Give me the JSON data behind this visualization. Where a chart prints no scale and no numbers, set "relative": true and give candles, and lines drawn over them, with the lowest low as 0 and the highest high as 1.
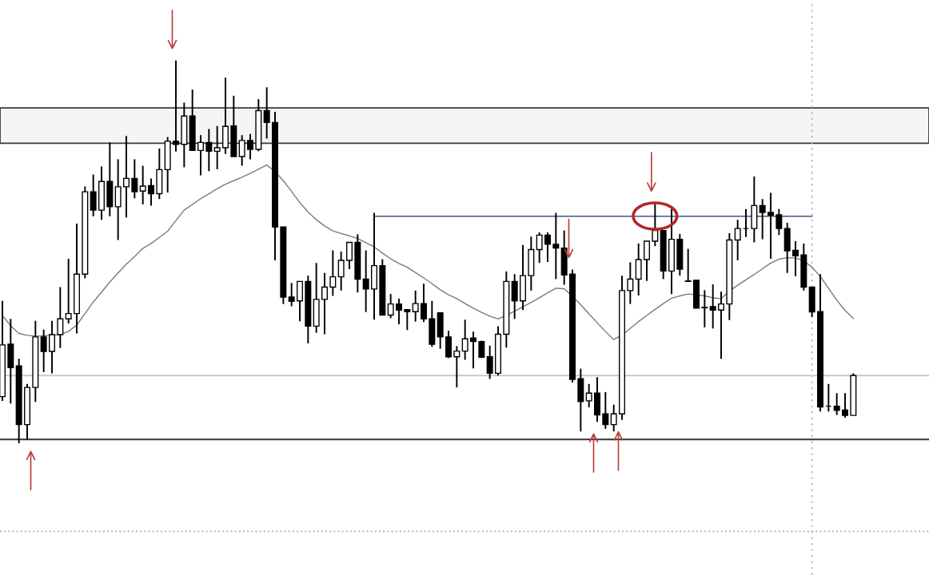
{
  "chart_data": {
    "type": "candlestick",
    "relative": true,
    "color": "#000000",
    "categories": [
      null,
      null,
      null,
      null,
      null,
      null,
      null,
      null,
      null,
      null,
      null,
      null,
      null,
      null,
      null,
      null,
      null,
      null,
      null,
      null,
      null,
      null,
      null,
      null,
      null,
      null,
      null,
      null,
      null,
      null,
      null,
      null,
      null,
      null,
      null,
      null,
      null,
      null,
      null,
      null,
      null,
      null,
      null,
      null,
      null,
      null,
      null,
      null,
      null,
      null,
      null,
      null,
      null,
      null,
      null,
      null,
      null,
      null,
      null,
      null,
      null,
      null,
      null,
      null,
      null,
      null,
      null,
      null,
      null,
      null,
      null,
      null,
      null,
      null,
      null,
      null,
      null,
      null,
      null,
      null,
      null,
      null,
      null,
      null,
      null,
      null,
      null,
      null,
      null,
      null,
      null,
      null,
      null,
      null,
      null,
      null,
      null,
      null,
      null,
      null,
      null,
      null,
      null,
      null
    ],
    "ohlc": [
      [
        0.122,
        0.372,
        0.111,
        0.257
      ],
      [
        0.259,
        0.325,
        0.104,
        0.198
      ],
      [
        0.202,
        0.221,
        0,
        0.049
      ],
      [
        0.049,
        0.155,
        0.01,
        0.146
      ],
      [
        0.146,
        0.32,
        0.108,
        0.278
      ],
      [
        0.278,
        0.297,
        0.186,
        0.24
      ],
      [
        0.24,
        0.32,
        0.183,
        0.284
      ],
      [
        0.284,
        0.408,
        0.249,
        0.325
      ],
      [
        0.325,
        0.482,
        0.313,
        0.339
      ],
      [
        0.339,
        0.574,
        0.287,
        0.442
      ],
      [
        0.442,
        0.671,
        0.431,
        0.657
      ],
      [
        0.657,
        0.702,
        0.593,
        0.609
      ],
      [
        0.609,
        0.723,
        0.584,
        0.684
      ],
      [
        0.684,
        0.786,
        0.593,
        0.618
      ],
      [
        0.618,
        0.742,
        0.531,
        0.67
      ],
      [
        0.67,
        0.803,
        0.59,
        0.692
      ],
      [
        0.692,
        0.742,
        0.64,
        0.657
      ],
      [
        0.659,
        0.725,
        0.624,
        0.672
      ],
      [
        0.673,
        0.692,
        0.621,
        0.652
      ],
      [
        0.652,
        0.77,
        0.638,
        0.715
      ],
      [
        0.715,
        0.8,
        0.655,
        0.789
      ],
      [
        0.789,
        1,
        0.762,
        0.781
      ],
      [
        0.781,
        0.89,
        0.721,
        0.855
      ],
      [
        0.855,
        0.924,
        0.765,
        0.765
      ],
      [
        0.765,
        0.805,
        0.7,
        0.786
      ],
      [
        0.786,
        0.821,
        0.711,
        0.763
      ],
      [
        0.763,
        0.829,
        0.716,
        0.772
      ],
      [
        0.772,
        0.955,
        0.756,
        0.828
      ],
      [
        0.829,
        0.908,
        0.749,
        0.749
      ],
      [
        0.749,
        0.805,
        0.725,
        0.791
      ],
      [
        0.791,
        0.808,
        0.742,
        0.768
      ],
      [
        0.768,
        0.899,
        0.763,
        0.869
      ],
      [
        0.869,
        0.93,
        0.796,
        0.838
      ],
      [
        0.838,
        0.866,
        0.478,
        0.565
      ],
      [
        0.565,
        0.565,
        0.364,
        0.382
      ],
      [
        0.382,
        0.419,
        0.358,
        0.371
      ],
      [
        0.372,
        0.423,
        0.319,
        0.423
      ],
      [
        0.423,
        0.438,
        0.261,
        0.306
      ],
      [
        0.306,
        0.471,
        0.289,
        0.376
      ],
      [
        0.376,
        0.445,
        0.285,
        0.408
      ],
      [
        0.408,
        0.504,
        0.385,
        0.435
      ],
      [
        0.435,
        0.501,
        0.399,
        0.478
      ],
      [
        0.478,
        0.525,
        0.455,
        0.525
      ],
      [
        0.525,
        0.546,
        0.394,
        0.429
      ],
      [
        0.429,
        0.504,
        0.343,
        0.403
      ],
      [
        0.403,
        0.602,
        0.323,
        0.464
      ],
      [
        0.464,
        0.481,
        0.335,
        0.335
      ],
      [
        0.335,
        0.39,
        0.327,
        0.364
      ],
      [
        0.364,
        0.378,
        0.311,
        0.348
      ],
      [
        0.349,
        0.349,
        0.296,
        0.344
      ],
      [
        0.344,
        0.399,
        0.318,
        0.365
      ],
      [
        0.365,
        0.417,
        0.317,
        0.325
      ],
      [
        0.325,
        0.372,
        0.252,
        0.259
      ],
      [
        0.341,
        0.341,
        0.247,
        0.278
      ],
      [
        0.278,
        0.294,
        0.223,
        0.226
      ],
      [
        0.226,
        0.254,
        0.146,
        0.241
      ],
      [
        0.241,
        0.323,
        0.218,
        0.273
      ],
      [
        0.275,
        0.292,
        0.196,
        0.266
      ],
      [
        0.266,
        0.268,
        0.223,
        0.225
      ],
      [
        0.226,
        0.255,
        0.168,
        0.183
      ],
      [
        0.183,
        0.306,
        0.177,
        0.285
      ],
      [
        0.285,
        0.449,
        0.25,
        0.423
      ],
      [
        0.423,
        0.442,
        0.325,
        0.372
      ],
      [
        0.372,
        0.518,
        0.348,
        0.438
      ],
      [
        0.438,
        0.54,
        0.399,
        0.506
      ],
      [
        0.506,
        0.551,
        0.471,
        0.544
      ],
      [
        0.544,
        0.551,
        0.474,
        0.52
      ],
      [
        0.52,
        0.602,
        0.429,
        0.51
      ],
      [
        0.51,
        0.556,
        0.414,
        0.44
      ],
      [
        0.442,
        0.454,
        0.159,
        0.167
      ],
      [
        0.169,
        0.195,
        0.031,
        0.109
      ],
      [
        0.111,
        0.155,
        0.094,
        0.131
      ],
      [
        0.131,
        0.173,
        0.056,
        0.074
      ],
      [
        0.077,
        0.134,
        0.038,
        0.049
      ],
      [
        0.049,
        0.101,
        0.031,
        0.077
      ],
      [
        0.077,
        0.438,
        0.061,
        0.399
      ],
      [
        0.399,
        0.473,
        0.364,
        0.429
      ],
      [
        0.429,
        0.522,
        0.386,
        0.48
      ],
      [
        0.48,
        0.528,
        0.424,
        0.528
      ],
      [
        0.528,
        0.628,
        0.515,
        0.556
      ],
      [
        0.556,
        0.556,
        0.429,
        0.45
      ],
      [
        0.45,
        0.612,
        0.39,
        0.533
      ],
      [
        0.533,
        0.547,
        0.438,
        0.455
      ],
      [
        0.424,
        0.508,
        0.422,
        0.423
      ],
      [
        0.426,
        0.426,
        0.353,
        0.353
      ],
      [
        0.355,
        0.4,
        0.303,
        0.354
      ],
      [
        0.357,
        0.415,
        0.3,
        0.348
      ],
      [
        0.348,
        0.396,
        0.221,
        0.364
      ],
      [
        0.364,
        0.549,
        0.322,
        0.531
      ],
      [
        0.531,
        0.584,
        0.478,
        0.561
      ],
      [
        0.561,
        0.612,
        0.539,
        0.561
      ],
      [
        0.561,
        0.697,
        0.525,
        0.621
      ],
      [
        0.621,
        0.638,
        0.533,
        0.603
      ],
      [
        0.603,
        0.654,
        0.482,
        0.596
      ],
      [
        0.597,
        0.612,
        0.544,
        0.561
      ],
      [
        0.561,
        0.576,
        0.445,
        0.503
      ],
      [
        0.504,
        0.528,
        0.436,
        0.49
      ],
      [
        0.492,
        0.522,
        0.399,
        0.408
      ],
      [
        0.408,
        0.408,
        0.33,
        0.343
      ],
      [
        0.344,
        0.442,
        0.083,
        0.095
      ],
      [
        0.097,
        0.155,
        0.083,
        0.097
      ],
      [
        0.097,
        0.131,
        0.074,
        0.086
      ],
      [
        0.087,
        0.131,
        0.067,
        0.073
      ],
      [
        0.073,
        0.183,
        0.073,
        0.177
      ]
    ],
    "series": [
      {
        "type": "line",
        "color": "#7a7a7a",
        "values": [
          0.334,
          0.307,
          0.287,
          0.282,
          0.28,
          0.281,
          0.282,
          0.284,
          0.292,
          0.309,
          0.339,
          0.369,
          0.395,
          0.421,
          0.445,
          0.468,
          0.488,
          0.509,
          0.522,
          0.538,
          0.554,
          0.582,
          0.609,
          0.624,
          0.639,
          0.652,
          0.665,
          0.677,
          0.686,
          0.695,
          0.705,
          0.716,
          0.727,
          0.71,
          0.686,
          0.658,
          0.629,
          0.604,
          0.584,
          0.568,
          0.555,
          0.548,
          0.542,
          0.535,
          0.524,
          0.513,
          0.497,
          0.482,
          0.47,
          0.46,
          0.446,
          0.432,
          0.417,
          0.401,
          0.388,
          0.378,
          0.365,
          0.353,
          0.342,
          0.332,
          0.325,
          0.334,
          0.345,
          0.356,
          0.368,
          0.38,
          0.393,
          0.405,
          0.404,
          0.384,
          0.362,
          0.338,
          0.315,
          0.292,
          0.271,
          0.283,
          0.3,
          0.318,
          0.334,
          0.35,
          0.365,
          0.379,
          0.385,
          0.39,
          0.388,
          0.385,
          0.38,
          0.378,
          0.398,
          0.413,
          0.427,
          0.441,
          0.456,
          0.471,
          0.481,
          0.485,
          0.484,
          0.477,
          0.46,
          0.436,
          0.405,
          0.374,
          0.347,
          0.326
        ]
      },
      {
        "type": "line",
        "color": "#1c3560",
        "values": [
          null,
          null,
          null,
          null,
          null,
          null,
          null,
          null,
          null,
          null,
          null,
          null,
          null,
          null,
          null,
          null,
          null,
          null,
          null,
          null,
          null,
          null,
          null,
          null,
          null,
          null,
          null,
          null,
          null,
          null,
          null,
          null,
          null,
          null,
          null,
          null,
          null,
          null,
          null,
          null,
          null,
          null,
          null,
          null,
          null,
          0.593,
          0.593,
          0.593,
          0.593,
          0.593,
          0.593,
          0.593,
          0.593,
          0.593,
          0.593,
          0.593,
          0.593,
          0.593,
          0.593,
          0.593,
          0.593,
          0.593,
          0.593,
          0.593,
          0.593,
          0.593,
          0.593,
          0.593,
          0.593,
          0.593,
          0.593,
          0.593,
          0.593,
          0.593,
          0.593,
          0.593,
          0.593,
          0.593,
          0.593,
          0.593,
          0.593,
          0.593,
          0.593,
          0.593,
          0.593,
          0.593,
          0.593,
          0.593,
          0.593,
          0.593,
          0.593,
          0.593,
          0.593,
          0.593,
          0.593,
          0.593,
          0.593,
          0.593,
          0.593,
          null,
          null,
          null,
          null,
          null
        ]
      }
    ],
    "ref_lines": [
      {
        "axis": "y",
        "value": 0.01,
        "color": "#333333"
      },
      {
        "axis": "y",
        "value": 0.177,
        "color": "#c8c8c8"
      },
      {
        "axis": "y",
        "value": -0.23,
        "color": "#a8a8a8",
        "line_style": "dotted"
      }
    ],
    "bands": [
      {
        "axis": "y",
        "from": 0.784,
        "to": 0.876,
        "color": "#3a3a3a"
      }
    ]
  }
}
